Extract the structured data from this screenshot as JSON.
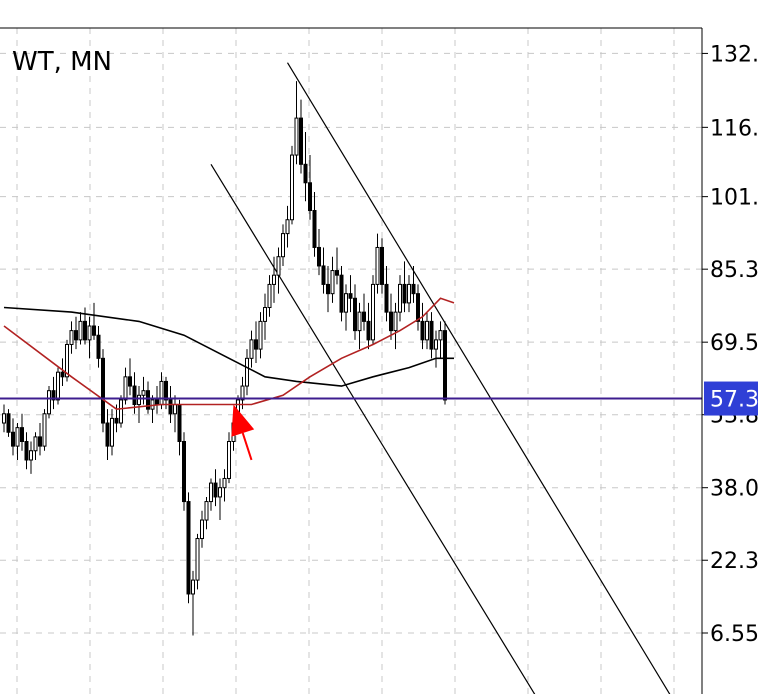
{
  "chart_data": {
    "type": "candlestick",
    "title": "WT, MN",
    "ylim": [
      0,
      135
    ],
    "grid": true,
    "y_ticks": [
      132,
      116,
      101,
      85.3,
      69.5,
      53.8,
      38.0,
      22.3,
      6.55
    ],
    "y_tick_labels": [
      "132.",
      "116.",
      "101.",
      "85.3",
      "69.5",
      "53.8",
      "38.0",
      "22.3",
      "6.55"
    ],
    "current_price": {
      "value": 57.3,
      "label": "57.3",
      "line_color": "#3d1d8f",
      "label_bg": "#2f3fd6"
    },
    "candle_color": "#000000",
    "ma_fast_color": "#b22222",
    "ma_slow_color": "#000000",
    "arrow_color": "#ff0000",
    "candles": [
      [
        52,
        56,
        50,
        54
      ],
      [
        54,
        55,
        49,
        50
      ],
      [
        50,
        53,
        45,
        47
      ],
      [
        47,
        52,
        44,
        51
      ],
      [
        51,
        54,
        46,
        48
      ],
      [
        48,
        50,
        42,
        44
      ],
      [
        44,
        48,
        41,
        46
      ],
      [
        46,
        50,
        44,
        49
      ],
      [
        49,
        52,
        45,
        47
      ],
      [
        47,
        55,
        46,
        54
      ],
      [
        54,
        60,
        53,
        59
      ],
      [
        59,
        62,
        55,
        57
      ],
      [
        57,
        64,
        56,
        63
      ],
      [
        63,
        66,
        60,
        62
      ],
      [
        62,
        70,
        61,
        69
      ],
      [
        69,
        74,
        67,
        72
      ],
      [
        72,
        75,
        68,
        70
      ],
      [
        70,
        76,
        69,
        74
      ],
      [
        74,
        77,
        69,
        70
      ],
      [
        70,
        75,
        66,
        73
      ],
      [
        73,
        78,
        70,
        71
      ],
      [
        71,
        73,
        64,
        66
      ],
      [
        66,
        68,
        50,
        52
      ],
      [
        52,
        55,
        44,
        47
      ],
      [
        47,
        55,
        45,
        53
      ],
      [
        53,
        56,
        50,
        52
      ],
      [
        52,
        58,
        51,
        57
      ],
      [
        57,
        64,
        56,
        62
      ],
      [
        62,
        66,
        58,
        60
      ],
      [
        60,
        63,
        54,
        56
      ],
      [
        56,
        60,
        52,
        58
      ],
      [
        58,
        62,
        56,
        59
      ],
      [
        59,
        61,
        54,
        55
      ],
      [
        55,
        58,
        52,
        57
      ],
      [
        57,
        60,
        54,
        56
      ],
      [
        56,
        63,
        55,
        61
      ],
      [
        61,
        62,
        55,
        57
      ],
      [
        57,
        60,
        52,
        54
      ],
      [
        54,
        58,
        50,
        56
      ],
      [
        56,
        57,
        45,
        48
      ],
      [
        48,
        50,
        33,
        35
      ],
      [
        35,
        37,
        13,
        15
      ],
      [
        15,
        20,
        6,
        18
      ],
      [
        18,
        28,
        16,
        27
      ],
      [
        27,
        33,
        25,
        31
      ],
      [
        31,
        36,
        29,
        35
      ],
      [
        35,
        40,
        33,
        39
      ],
      [
        39,
        42,
        34,
        36
      ],
      [
        36,
        40,
        31,
        38
      ],
      [
        38,
        42,
        35,
        40
      ],
      [
        40,
        50,
        39,
        48
      ],
      [
        48,
        54,
        46,
        52
      ],
      [
        52,
        58,
        50,
        57
      ],
      [
        57,
        62,
        55,
        60
      ],
      [
        60,
        68,
        58,
        66
      ],
      [
        66,
        72,
        64,
        70
      ],
      [
        70,
        74,
        65,
        68
      ],
      [
        68,
        76,
        66,
        74
      ],
      [
        74,
        80,
        70,
        77
      ],
      [
        77,
        84,
        75,
        82
      ],
      [
        82,
        88,
        78,
        84
      ],
      [
        84,
        90,
        80,
        88
      ],
      [
        88,
        95,
        86,
        93
      ],
      [
        93,
        99,
        90,
        96
      ],
      [
        96,
        112,
        95,
        110
      ],
      [
        110,
        126,
        108,
        118
      ],
      [
        118,
        122,
        106,
        108
      ],
      [
        108,
        115,
        100,
        104
      ],
      [
        104,
        110,
        96,
        98
      ],
      [
        98,
        102,
        88,
        90
      ],
      [
        90,
        94,
        84,
        86
      ],
      [
        86,
        90,
        80,
        82
      ],
      [
        82,
        86,
        76,
        80
      ],
      [
        80,
        88,
        78,
        85
      ],
      [
        85,
        90,
        82,
        84
      ],
      [
        84,
        86,
        74,
        76
      ],
      [
        76,
        82,
        72,
        80
      ],
      [
        80,
        84,
        76,
        79
      ],
      [
        79,
        82,
        70,
        72
      ],
      [
        72,
        78,
        68,
        76
      ],
      [
        76,
        80,
        72,
        74
      ],
      [
        74,
        78,
        68,
        70
      ],
      [
        70,
        84,
        69,
        82
      ],
      [
        82,
        93,
        80,
        90
      ],
      [
        90,
        92,
        80,
        82
      ],
      [
        82,
        86,
        74,
        76
      ],
      [
        76,
        80,
        70,
        72
      ],
      [
        72,
        78,
        68,
        76
      ],
      [
        76,
        84,
        74,
        82
      ],
      [
        82,
        87,
        76,
        78
      ],
      [
        78,
        84,
        76,
        82
      ],
      [
        82,
        86,
        78,
        80
      ],
      [
        80,
        82,
        72,
        74
      ],
      [
        74,
        78,
        68,
        70
      ],
      [
        70,
        76,
        68,
        74
      ],
      [
        74,
        76,
        66,
        68
      ],
      [
        68,
        72,
        64,
        70
      ],
      [
        70,
        74,
        66,
        72
      ],
      [
        72,
        74,
        56,
        57
      ]
    ],
    "ma_fast": [
      [
        0,
        73
      ],
      [
        15,
        62
      ],
      [
        25,
        55
      ],
      [
        35,
        56
      ],
      [
        45,
        56
      ],
      [
        55,
        56
      ],
      [
        62,
        58
      ],
      [
        68,
        62
      ],
      [
        75,
        66
      ],
      [
        82,
        69
      ],
      [
        88,
        72
      ],
      [
        93,
        75
      ],
      [
        97,
        79
      ],
      [
        100,
        78
      ]
    ],
    "ma_slow": [
      [
        0,
        77
      ],
      [
        15,
        76
      ],
      [
        30,
        74
      ],
      [
        40,
        71
      ],
      [
        50,
        66
      ],
      [
        58,
        62
      ],
      [
        65,
        61
      ],
      [
        75,
        60
      ],
      [
        82,
        62
      ],
      [
        90,
        64
      ],
      [
        96,
        66
      ],
      [
        100,
        66
      ]
    ],
    "trendlines": [
      {
        "from": [
          63,
          130
        ],
        "to": [
          150,
          -10
        ]
      },
      {
        "from": [
          46,
          108
        ],
        "to": [
          120,
          -10
        ]
      }
    ],
    "arrow": {
      "tip": [
        51,
        56
      ],
      "tail": [
        55,
        44
      ]
    }
  }
}
